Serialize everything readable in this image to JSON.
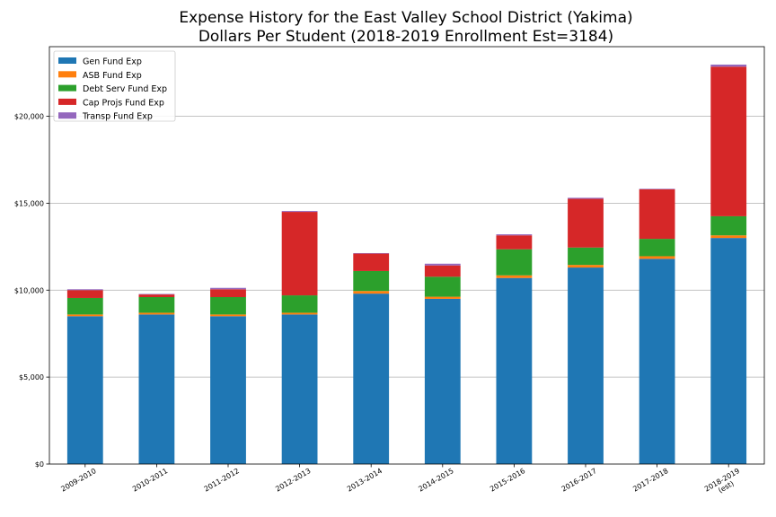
{
  "chart_data": {
    "type": "bar",
    "stacked": true,
    "title": "Expense History for the East Valley School District (Yakima)",
    "subtitle": "Dollars Per Student (2018-2019 Enrollment Est=3184)",
    "xlabel": "",
    "ylabel": "",
    "ylim": [
      0,
      24000
    ],
    "yticks": [
      0,
      5000,
      10000,
      15000,
      20000
    ],
    "ytick_labels": [
      "$0",
      "$5,000",
      "$10,000",
      "$15,000",
      "$20,000"
    ],
    "grid": true,
    "legend_position": "top-left",
    "categories": [
      [
        "2009-2010"
      ],
      [
        "2010-2011"
      ],
      [
        "2011-2012"
      ],
      [
        "2012-2013"
      ],
      [
        "2013-2014"
      ],
      [
        "2014-2015"
      ],
      [
        "2015-2016"
      ],
      [
        "2016-2017"
      ],
      [
        "2017-2018"
      ],
      [
        "2018-2019",
        "(est)"
      ]
    ],
    "series": [
      {
        "name": "Gen Fund Exp",
        "color": "#1f77b4",
        "values": [
          8500,
          8600,
          8500,
          8600,
          9800,
          9500,
          10700,
          11300,
          11800,
          13000
        ]
      },
      {
        "name": "ASB Fund Exp",
        "color": "#ff7f0e",
        "values": [
          100,
          100,
          100,
          100,
          150,
          120,
          150,
          150,
          150,
          150
        ]
      },
      {
        "name": "Debt Serv Fund Exp",
        "color": "#2ca02c",
        "values": [
          950,
          900,
          1000,
          1000,
          1150,
          1150,
          1500,
          1000,
          1000,
          1100
        ]
      },
      {
        "name": "Cap Projs Fund Exp",
        "color": "#d62728",
        "values": [
          450,
          150,
          450,
          4800,
          1000,
          650,
          800,
          2800,
          2850,
          8600
        ]
      },
      {
        "name": "Transp Fund Exp",
        "color": "#9467bd",
        "values": [
          50,
          30,
          80,
          50,
          30,
          100,
          60,
          60,
          30,
          120
        ]
      }
    ]
  }
}
